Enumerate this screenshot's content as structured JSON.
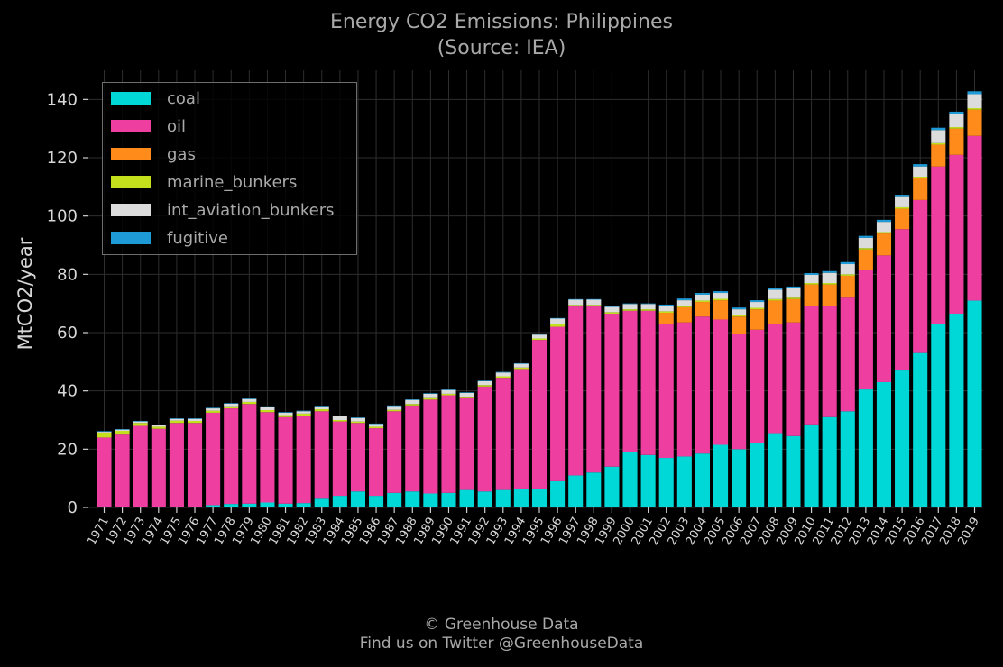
{
  "title": "Energy CO2 Emissions: Philippines",
  "subtitle": "(Source: IEA)",
  "footer": {
    "line1": "© Greenhouse Data",
    "line2": "Find us on Twitter @GreenhouseData"
  },
  "colors": {
    "coal": "#00d8d8",
    "oil": "#ee3ea0",
    "gas": "#ff8c1a",
    "marine_bunkers": "#c4e01c",
    "int_aviation_bunkers": "#dcdcdc",
    "fugitive": "#1e9ad6",
    "background": "#000000",
    "grid": "#2e2e2e"
  },
  "chart_data": {
    "type": "bar",
    "stacked": true,
    "ylabel": "MtCO2/year",
    "xlabel": "",
    "ylim": [
      0,
      150
    ],
    "yticks": [
      0,
      20,
      40,
      60,
      80,
      100,
      120,
      140
    ],
    "grid": true,
    "legend_position": "top-left",
    "categories": [
      "1971",
      "1972",
      "1973",
      "1974",
      "1975",
      "1976",
      "1977",
      "1978",
      "1979",
      "1980",
      "1981",
      "1982",
      "1983",
      "1984",
      "1985",
      "1986",
      "1987",
      "1988",
      "1989",
      "1990",
      "1991",
      "1992",
      "1993",
      "1994",
      "1995",
      "1996",
      "1997",
      "1998",
      "1999",
      "2000",
      "2001",
      "2002",
      "2003",
      "2004",
      "2005",
      "2006",
      "2007",
      "2008",
      "2009",
      "2010",
      "2011",
      "2012",
      "2013",
      "2014",
      "2015",
      "2016",
      "2017",
      "2018",
      "2019"
    ],
    "series": [
      {
        "name": "coal",
        "values": [
          0.3,
          0.3,
          0.3,
          0.3,
          0.3,
          0.3,
          0.8,
          1.2,
          1.3,
          1.7,
          1.3,
          1.5,
          3.0,
          4.0,
          5.5,
          4.0,
          5.0,
          5.5,
          4.8,
          5.0,
          6.0,
          5.5,
          6.0,
          6.5,
          6.5,
          9.0,
          11.0,
          12.0,
          14.0,
          19.0,
          18.0,
          17.0,
          17.5,
          18.5,
          21.5,
          20.0,
          22.0,
          25.5,
          24.5,
          28.5,
          31.0,
          33.0,
          40.5,
          43.0,
          47.0,
          53.0,
          63.0,
          66.5,
          71.0
        ]
      },
      {
        "name": "oil",
        "values": [
          23.7,
          24.7,
          27.7,
          26.7,
          28.7,
          28.7,
          31.7,
          32.8,
          34.2,
          31.0,
          29.7,
          30.0,
          30.0,
          25.5,
          23.5,
          23.2,
          28.0,
          29.5,
          32.2,
          33.5,
          31.5,
          36.0,
          38.5,
          41.0,
          51.0,
          53.0,
          58.0,
          57.0,
          52.5,
          48.5,
          49.5,
          46.0,
          46.0,
          47.0,
          43.0,
          39.5,
          39.0,
          37.5,
          39.0,
          40.5,
          38.0,
          39.0,
          41.0,
          43.5,
          48.5,
          52.5,
          54.0,
          54.5,
          56.5
        ]
      },
      {
        "name": "gas",
        "values": [
          0,
          0,
          0,
          0,
          0,
          0,
          0,
          0,
          0,
          0,
          0,
          0,
          0,
          0,
          0,
          0,
          0,
          0,
          0,
          0,
          0,
          0,
          0,
          0,
          0,
          0,
          0,
          0,
          0,
          0,
          0,
          3.8,
          5.2,
          5.0,
          6.6,
          6.0,
          7.0,
          8.0,
          8.0,
          7.5,
          7.5,
          7.5,
          7.0,
          7.5,
          7.0,
          7.5,
          7.5,
          9.0,
          9.0
        ]
      },
      {
        "name": "marine_bunkers",
        "values": [
          1.7,
          1.3,
          1.0,
          0.7,
          0.8,
          0.7,
          0.7,
          0.7,
          0.7,
          0.7,
          0.7,
          0.7,
          0.7,
          0.5,
          0.5,
          0.5,
          0.5,
          0.5,
          0.5,
          0.5,
          0.5,
          0.5,
          0.5,
          0.5,
          0.5,
          1.0,
          0.5,
          0.5,
          0.5,
          0.5,
          0.5,
          0.5,
          0.5,
          0.5,
          0.5,
          0.5,
          0.5,
          0.5,
          0.5,
          0.5,
          0.5,
          0.5,
          0.5,
          0.5,
          0.5,
          0.5,
          0.5,
          0.5,
          0.5
        ]
      },
      {
        "name": "int_aviation_bunkers",
        "values": [
          0.3,
          0.4,
          0.5,
          0.5,
          0.6,
          0.7,
          0.8,
          0.9,
          1.0,
          1.1,
          0.8,
          0.8,
          1.0,
          1.3,
          1.2,
          0.9,
          1.3,
          1.4,
          1.5,
          1.3,
          1.3,
          1.3,
          1.3,
          1.3,
          1.3,
          1.8,
          1.8,
          1.8,
          1.8,
          1.8,
          1.8,
          1.8,
          1.9,
          2.0,
          2.0,
          2.0,
          2.0,
          3.2,
          3.2,
          2.8,
          3.5,
          3.5,
          3.5,
          3.5,
          3.5,
          3.5,
          4.5,
          4.5,
          4.8
        ]
      },
      {
        "name": "fugitive",
        "values": [
          0.2,
          0.2,
          0.2,
          0.2,
          0.2,
          0.2,
          0.2,
          0.2,
          0.2,
          0.2,
          0.2,
          0.2,
          0.2,
          0.2,
          0.2,
          0.2,
          0.2,
          0.2,
          0.2,
          0.2,
          0.2,
          0.2,
          0.2,
          0.2,
          0.2,
          0.2,
          0.2,
          0.2,
          0.2,
          0.2,
          0.2,
          0.5,
          0.6,
          0.6,
          0.6,
          0.6,
          0.6,
          0.6,
          0.6,
          0.6,
          0.6,
          0.7,
          0.7,
          0.7,
          0.8,
          0.8,
          0.8,
          0.8,
          1.0
        ]
      }
    ]
  }
}
